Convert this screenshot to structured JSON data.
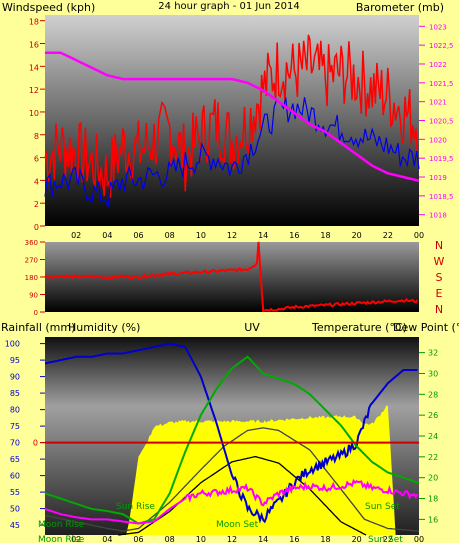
{
  "colors": {
    "background": "#ffff99",
    "panel_dark": "#000000",
    "panel_light": "#b8b8b8",
    "wind_gust": "#ff0000",
    "wind_avg": "#0000ee",
    "barometer": "#ff00ff",
    "direction": "#ff0000",
    "rainfall": "#cc0000",
    "humidity": "#0000cc",
    "uv_fill": "#ffff00",
    "temperature": "#00aa00",
    "dewpoint": "#ff00ff",
    "sun_curve": "#000000",
    "moon_curve": "#444444",
    "text_red": "#cc0000",
    "text_magenta": "#ff00ff",
    "text_green": "#009900",
    "text_black": "#000000",
    "text_blue": "#0000cc",
    "text_ghost": "#ffff33"
  },
  "chart_data": [
    {
      "type": "line",
      "title": "24 hour graph - 01 Jun 2014",
      "left_axis_label": "Windspeed (kph)",
      "right_axis_label": "Barometer (mb)",
      "x_ticks": [
        "02",
        "04",
        "06",
        "08",
        "10",
        "12",
        "14",
        "16",
        "18",
        "20",
        "22",
        "00"
      ],
      "y_ticks": [
        "0",
        "2",
        "4",
        "6",
        "8",
        "10",
        "12",
        "14",
        "16",
        "18"
      ],
      "ylim": [
        0,
        18.5
      ],
      "y2_ticks": [
        "1018",
        "1018,5",
        "1019",
        "1019,5",
        "1020",
        "1020,5",
        "1021",
        "1021,5",
        "1022",
        "1022,5",
        "1023"
      ],
      "y2lim": [
        1017.7,
        1023.3
      ],
      "x_hours": [
        0,
        24
      ],
      "series": [
        {
          "key": "gust",
          "hours": [
            0,
            1,
            2,
            3,
            4,
            5,
            6,
            7,
            8,
            9,
            10,
            11,
            12,
            13,
            14,
            15,
            16,
            17,
            18,
            19,
            20,
            21,
            22,
            23,
            24
          ],
          "values": [
            6,
            7,
            6.5,
            5.5,
            4.5,
            7,
            6.5,
            7.5,
            8.5,
            6,
            8,
            9,
            7.5,
            9,
            12,
            14,
            13.5,
            14,
            13,
            13.5,
            13,
            12,
            11.5,
            10,
            9
          ]
        },
        {
          "key": "avg",
          "hours": [
            0,
            1,
            2,
            3,
            4,
            5,
            6,
            7,
            8,
            9,
            10,
            11,
            12,
            13,
            14,
            15,
            16,
            17,
            18,
            19,
            20,
            21,
            22,
            23,
            24
          ],
          "values": [
            3.5,
            4,
            4,
            3,
            2.5,
            4,
            4,
            4.5,
            4.5,
            5.5,
            6,
            6,
            5,
            6.5,
            8.5,
            10,
            10.5,
            10,
            9,
            8.5,
            8,
            7.5,
            7,
            6,
            6
          ]
        },
        {
          "key": "baro",
          "hours": [
            0,
            1,
            2,
            3,
            4,
            5,
            6,
            7,
            8,
            9,
            10,
            11,
            12,
            13,
            14,
            15,
            16,
            17,
            18,
            19,
            20,
            21,
            22,
            23,
            24
          ],
          "values": [
            1022.3,
            1022.3,
            1022.1,
            1021.9,
            1021.7,
            1021.6,
            1021.6,
            1021.6,
            1021.6,
            1021.6,
            1021.6,
            1021.6,
            1021.6,
            1021.5,
            1021.3,
            1021.0,
            1020.7,
            1020.4,
            1020.2,
            1019.9,
            1019.6,
            1019.3,
            1019.1,
            1019.0,
            1018.9
          ]
        }
      ]
    },
    {
      "type": "line",
      "title": "",
      "y_ticks": [
        "0",
        "90",
        "180",
        "270",
        "360"
      ],
      "ylim": [
        0,
        360
      ],
      "right_labels": [
        "N",
        "W",
        "S",
        "E",
        "N"
      ],
      "x_hours": [
        0,
        24
      ],
      "series": [
        {
          "key": "direction",
          "hours": [
            0,
            1,
            2,
            3,
            4,
            5,
            6,
            7,
            8,
            9,
            10,
            11,
            12,
            13,
            13.6,
            13.7,
            14,
            15,
            16,
            17,
            18,
            19,
            20,
            21,
            22,
            23,
            24
          ],
          "values": [
            180,
            185,
            180,
            182,
            178,
            183,
            180,
            190,
            195,
            200,
            205,
            210,
            215,
            220,
            250,
            360,
            10,
            15,
            25,
            30,
            35,
            40,
            45,
            50,
            55,
            60,
            55
          ]
        }
      ]
    },
    {
      "type": "line",
      "labels": {
        "rain": "Rainfall (mm)",
        "humidity": "Humidity (%)",
        "uv": "UV",
        "temperature": "Temperature (°C)",
        "dewpoint": "Dew Point (°C)"
      },
      "left_ticks": [
        "45",
        "50",
        "55",
        "60",
        "65",
        "70",
        "75",
        "80",
        "85",
        "90",
        "95",
        "100"
      ],
      "ylim": [
        42,
        102
      ],
      "rain_tick": "0",
      "rain_value": 0,
      "right_ticks": [
        "16",
        "18",
        "20",
        "22",
        "24",
        "26",
        "28",
        "30",
        "32"
      ],
      "y2lim": [
        14.5,
        33.5
      ],
      "x_ticks": [
        "02",
        "04",
        "06",
        "08",
        "10",
        "12",
        "14",
        "16",
        "18",
        "20",
        "22",
        "00"
      ],
      "x_hours": [
        0,
        24
      ],
      "astro_labels": {
        "moon_rise_top": "Moon Rise",
        "sun_rise": "Sun Rise",
        "moon_set": "Moon Set",
        "sun_set": "Sun Set",
        "moon_rise_bottom": "Moon Rise",
        "sun_set_bottom": "Sun Set"
      },
      "series": [
        {
          "key": "humidity",
          "hours": [
            0,
            1,
            2,
            3,
            4,
            5,
            6,
            7,
            8,
            9,
            10,
            11,
            12,
            13,
            14,
            15,
            16,
            17,
            18,
            19,
            20,
            21,
            22,
            23,
            24
          ],
          "values": [
            94,
            95,
            96,
            96,
            97,
            97,
            98,
            99,
            100,
            99,
            90,
            76,
            60,
            50,
            47,
            52,
            58,
            62,
            64,
            66,
            70,
            82,
            88,
            92,
            92
          ]
        },
        {
          "key": "temperature",
          "hours": [
            0,
            1,
            2,
            3,
            4,
            5,
            6,
            7,
            8,
            9,
            10,
            11,
            12,
            13,
            14,
            15,
            16,
            17,
            18,
            19,
            20,
            21,
            22,
            23,
            24
          ],
          "values": [
            18.5,
            18,
            17.5,
            17,
            16.8,
            16.5,
            15.6,
            16,
            18.5,
            22.5,
            26,
            28.5,
            30.5,
            31.6,
            30,
            29.5,
            29,
            28,
            26.5,
            25,
            23,
            21.5,
            20.5,
            20,
            19.5
          ]
        },
        {
          "key": "dewpoint",
          "hours": [
            0,
            1,
            2,
            3,
            4,
            5,
            6,
            7,
            8,
            9,
            10,
            11,
            12,
            13,
            14,
            15,
            16,
            17,
            18,
            19,
            20,
            21,
            22,
            23,
            24
          ],
          "values": [
            17,
            16.5,
            16.2,
            16,
            16,
            15.8,
            15.6,
            15.8,
            17,
            18,
            18.5,
            18.6,
            18.8,
            19,
            17.5,
            18.5,
            19,
            19.2,
            19,
            19.2,
            19.5,
            19,
            18.8,
            18.5,
            18.3
          ]
        },
        {
          "key": "uv",
          "hours": [
            0,
            5.2,
            5.4,
            6,
            6.5,
            7,
            8,
            9,
            10,
            11,
            12,
            13,
            14,
            15,
            16,
            17,
            18,
            19,
            20,
            20.5,
            21,
            21.5,
            22,
            22.5,
            23,
            24
          ],
          "values": [
            0,
            0,
            1,
            6,
            7,
            8.3,
            8.6,
            8.7,
            8.7,
            8.7,
            8.7,
            8.7,
            8.7,
            8.8,
            8.9,
            9,
            9,
            9.1,
            9,
            8.5,
            8.5,
            9.2,
            10,
            0,
            0,
            0
          ]
        },
        {
          "key": "sun",
          "hours": [
            4.7,
            6,
            8,
            10,
            12,
            13.5,
            15,
            17,
            19,
            20.6
          ],
          "values": [
            0,
            0.2,
            1.8,
            4.0,
            5.6,
            6.0,
            5.5,
            3.5,
            1.0,
            0
          ]
        },
        {
          "key": "moon",
          "hours": [
            0,
            2,
            4,
            5,
            6,
            8,
            10,
            11.5,
            13,
            14,
            15,
            17,
            19,
            20.5,
            22,
            24
          ],
          "values": [
            1.5,
            1.0,
            0.5,
            0.3,
            0.5,
            2.5,
            5.0,
            6.8,
            8.0,
            8.2,
            8.0,
            6.5,
            3.5,
            1.2,
            0.5,
            0.3
          ]
        }
      ]
    }
  ]
}
